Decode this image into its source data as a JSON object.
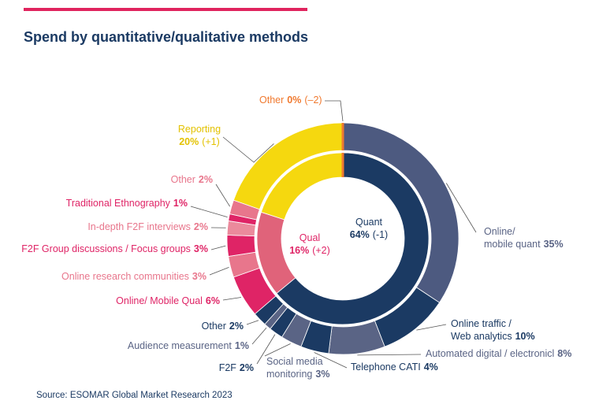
{
  "chart_data": {
    "type": "pie",
    "title": "Spend by quantitative/qualitative methods",
    "source": "Source: ESOMAR Global Market Research 2023",
    "inner": {
      "categories": [
        "Quant",
        "Qual",
        "Reporting",
        "Other"
      ],
      "values": [
        64,
        16,
        20,
        0
      ],
      "value_labels": [
        "64%",
        "16%",
        "20%",
        "0%"
      ],
      "change_labels": [
        "(-1)",
        "(+2)",
        "(+1)",
        "(–2)"
      ],
      "colors": [
        "#1b3a63",
        "#e0637a",
        "#f5d80f",
        "#f07a30"
      ]
    },
    "outer": {
      "labels": [
        [
          "Online/",
          "mobile quant"
        ],
        [
          "Online traffic /",
          "Web analytics"
        ],
        [
          "Automated digital / electronicl"
        ],
        [
          "Telephone CATI"
        ],
        [
          "Social media",
          "monitoring"
        ],
        [
          "F2F"
        ],
        [
          "Audience measurement"
        ],
        [
          "Other"
        ],
        [
          "Online/ Mobile Qual"
        ],
        [
          "Online research communities"
        ],
        [
          "F2F Group discussions / Focus groups"
        ],
        [
          "In-depth F2F interviews"
        ],
        [
          "Traditional Ethnography"
        ],
        [
          "Other"
        ]
      ],
      "values": [
        35,
        10,
        8,
        4,
        3,
        2,
        1,
        2,
        6,
        3,
        3,
        2,
        1,
        2
      ],
      "value_labels": [
        "35%",
        "10%",
        "8%",
        "4%",
        "3%",
        "2%",
        "1%",
        "2%",
        "6%",
        "3%",
        "3%",
        "2%",
        "1%",
        "2%"
      ],
      "colors": [
        "#4d5a80",
        "#1b3a63",
        "#5a6485",
        "#1b3a63",
        "#5a6485",
        "#1b3a63",
        "#5a6485",
        "#1b3a63",
        "#df2466",
        "#e8768c",
        "#df2466",
        "#eb8a9c",
        "#df2466",
        "#e8768c"
      ]
    }
  }
}
